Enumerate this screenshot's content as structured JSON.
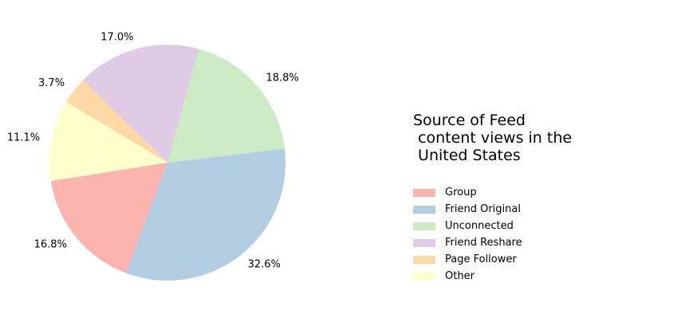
{
  "chart_data": {
    "type": "pie",
    "title": "Source of Feed\n content views in the\n United States",
    "categories": [
      "Group",
      "Friend Original",
      "Unconnected",
      "Friend Reshare",
      "Page Follower",
      "Other"
    ],
    "values": [
      16.8,
      32.6,
      18.8,
      17.0,
      3.7,
      11.1
    ],
    "value_labels": [
      "16.8%",
      "32.6%",
      "18.8%",
      "17.0%",
      "3.7%",
      "11.1%"
    ],
    "colors": [
      "#fbb4ae",
      "#b3cde3",
      "#ccebc5",
      "#decbe4",
      "#fed9a6",
      "#ffffcc"
    ],
    "legend_placement": "right",
    "start_angle_deg": 189,
    "direction": "counterclockwise"
  }
}
